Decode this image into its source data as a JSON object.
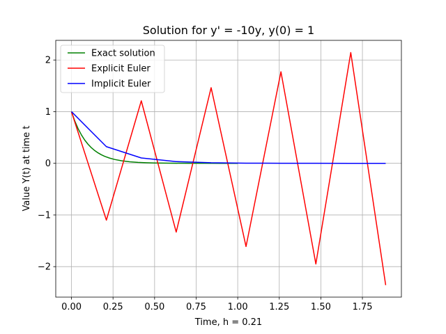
{
  "chart_data": {
    "type": "line",
    "title": "Solution for y' = -10y, y(0) = 1",
    "xlabel": "Time, h = 0.21",
    "ylabel": "Value Y(t) at time t",
    "xlim": [
      -0.0945,
      1.9845
    ],
    "ylim": [
      -2.59,
      2.38
    ],
    "xticks": [
      0.0,
      0.25,
      0.5,
      0.75,
      1.0,
      1.25,
      1.5,
      1.75
    ],
    "xtick_labels": [
      "0.00",
      "0.25",
      "0.50",
      "0.75",
      "1.00",
      "1.25",
      "1.50",
      "1.75"
    ],
    "yticks": [
      -2,
      -1,
      0,
      1,
      2
    ],
    "ytick_labels": [
      "−2",
      "−1",
      "0",
      "1",
      "2"
    ],
    "grid": true,
    "legend_position": "top-left",
    "series": [
      {
        "name": "Exact solution",
        "color": "#008000",
        "x": [
          0.0,
          0.02,
          0.04,
          0.06,
          0.08,
          0.1,
          0.12,
          0.14,
          0.16,
          0.18,
          0.2,
          0.23,
          0.26,
          0.3,
          0.35,
          0.4,
          0.45,
          0.5,
          0.6,
          0.7,
          0.8,
          0.9,
          1.0
        ],
        "y": [
          1.0,
          0.8187,
          0.6703,
          0.5488,
          0.4493,
          0.3679,
          0.3012,
          0.2466,
          0.2019,
          0.1653,
          0.1353,
          0.1003,
          0.0743,
          0.0498,
          0.0302,
          0.0183,
          0.0111,
          0.0067,
          0.0025,
          0.0009,
          0.0003,
          0.0001,
          0.0
        ]
      },
      {
        "name": "Explicit Euler",
        "color": "#ff0000",
        "x": [
          0.0,
          0.21,
          0.42,
          0.63,
          0.84,
          1.05,
          1.26,
          1.47,
          1.68,
          1.89
        ],
        "y": [
          1.0,
          -1.1,
          1.21,
          -1.331,
          1.4641,
          -1.6105,
          1.7716,
          -1.9487,
          2.1436,
          -2.3579
        ]
      },
      {
        "name": "Implicit Euler",
        "color": "#0000ff",
        "x": [
          0.0,
          0.21,
          0.42,
          0.63,
          0.84,
          1.05,
          1.26,
          1.47,
          1.68,
          1.89
        ],
        "y": [
          1.0,
          0.3226,
          0.1041,
          0.0336,
          0.0108,
          0.0035,
          0.0011,
          0.0004,
          0.0001,
          0.0
        ]
      }
    ]
  }
}
